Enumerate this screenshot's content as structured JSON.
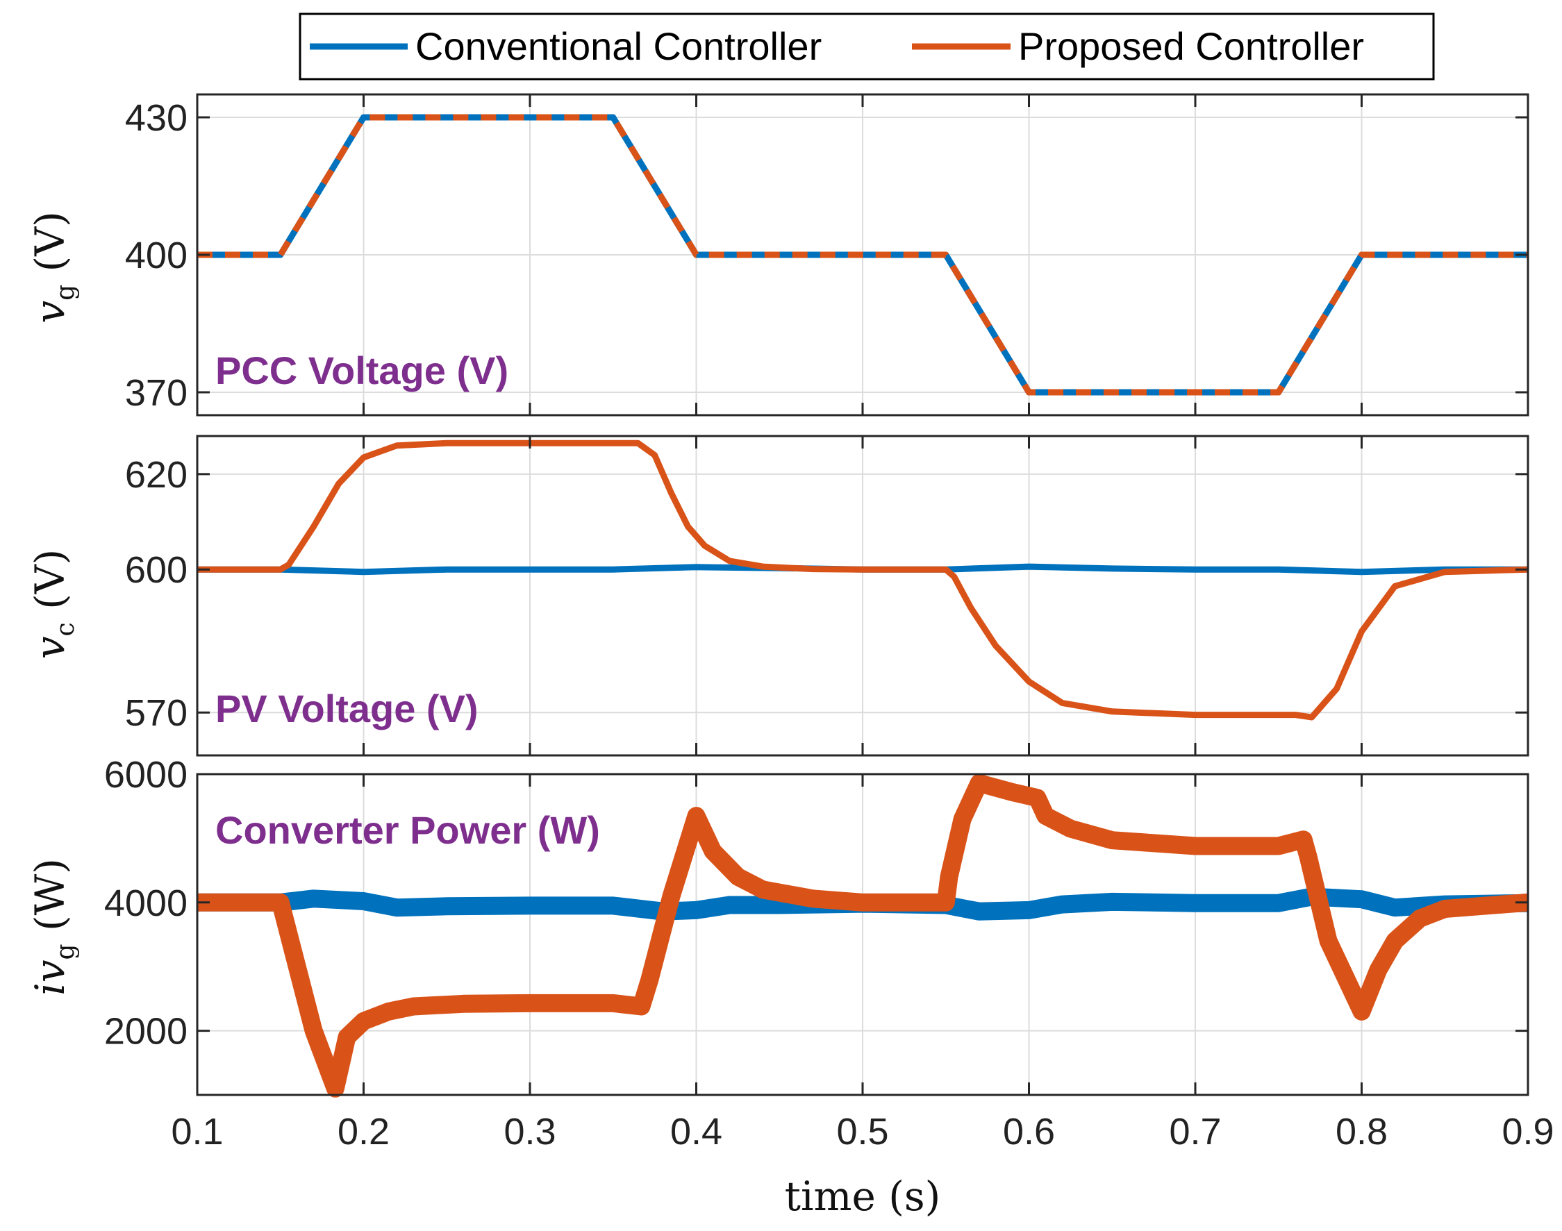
{
  "colors": {
    "conventional": "#0072BD",
    "proposed": "#D95319",
    "annotation": "#7E2F8E",
    "grid": "#dcdcdc",
    "axis": "#262626"
  },
  "legend": {
    "entries": [
      "Conventional Controller",
      "Proposed Controller"
    ]
  },
  "chart_data": [
    {
      "type": "line",
      "annotation": "PCC Voltage (V)",
      "ylabel": {
        "symbol": "v",
        "sub": "g",
        "unit": "(V)"
      },
      "xlim": [
        0.1,
        0.9
      ],
      "ylim": [
        365,
        435
      ],
      "yticks": [
        370,
        400,
        430
      ],
      "grid": true,
      "series": [
        {
          "name": "Conventional Controller",
          "x": [
            0.1,
            0.15,
            0.2,
            0.35,
            0.4,
            0.55,
            0.6,
            0.75,
            0.8,
            0.9
          ],
          "y": [
            400,
            400,
            430,
            430,
            400,
            400,
            370,
            370,
            400,
            400
          ]
        },
        {
          "name": "Proposed Controller",
          "dashed": true,
          "x": [
            0.1,
            0.15,
            0.2,
            0.35,
            0.4,
            0.55,
            0.6,
            0.75,
            0.8,
            0.9
          ],
          "y": [
            400,
            400,
            430,
            430,
            400,
            400,
            370,
            370,
            400,
            400
          ]
        }
      ]
    },
    {
      "type": "line",
      "annotation": "PV Voltage (V)",
      "ylabel": {
        "symbol": "v",
        "sub": "c",
        "unit": "(V)"
      },
      "xlim": [
        0.1,
        0.9
      ],
      "ylim": [
        561,
        628
      ],
      "yticks": [
        570,
        600,
        620
      ],
      "grid": true,
      "series": [
        {
          "name": "Conventional Controller",
          "x": [
            0.1,
            0.15,
            0.2,
            0.25,
            0.3,
            0.35,
            0.4,
            0.45,
            0.5,
            0.55,
            0.6,
            0.65,
            0.7,
            0.75,
            0.8,
            0.85,
            0.9
          ],
          "y": [
            600,
            600,
            599.5,
            600,
            600,
            600,
            600.5,
            600.3,
            600,
            600,
            600.6,
            600.2,
            600,
            600,
            599.5,
            600,
            600
          ]
        },
        {
          "name": "Proposed Controller",
          "x": [
            0.1,
            0.15,
            0.155,
            0.17,
            0.185,
            0.2,
            0.22,
            0.25,
            0.3,
            0.35,
            0.365,
            0.375,
            0.385,
            0.395,
            0.405,
            0.42,
            0.44,
            0.47,
            0.5,
            0.55,
            0.555,
            0.565,
            0.58,
            0.6,
            0.62,
            0.65,
            0.7,
            0.76,
            0.77,
            0.785,
            0.8,
            0.82,
            0.85,
            0.9
          ],
          "y": [
            600,
            600,
            601,
            609,
            618,
            623.5,
            626,
            626.5,
            626.5,
            626.5,
            626.5,
            624,
            616,
            609,
            605,
            601.8,
            600.6,
            600.1,
            600,
            600,
            598.5,
            592,
            584,
            576.5,
            572,
            570.2,
            569.5,
            569.5,
            569,
            575,
            587,
            596.5,
            599.5,
            600
          ]
        }
      ]
    },
    {
      "type": "line",
      "annotation": "Converter Power (W)",
      "ylabel": {
        "symbol": "iv",
        "sub": "g",
        "unit": "(W)"
      },
      "xlim": [
        0.1,
        0.9
      ],
      "ylim": [
        1000,
        6000
      ],
      "yticks": [
        2000,
        4000,
        6000
      ],
      "grid": true,
      "series": [
        {
          "name": "Conventional Controller",
          "band": true,
          "x": [
            0.1,
            0.15,
            0.17,
            0.2,
            0.22,
            0.25,
            0.3,
            0.35,
            0.38,
            0.4,
            0.42,
            0.45,
            0.5,
            0.55,
            0.57,
            0.6,
            0.62,
            0.65,
            0.7,
            0.75,
            0.77,
            0.8,
            0.82,
            0.85,
            0.9
          ],
          "y": [
            4000,
            4000,
            4060,
            4020,
            3920,
            3940,
            3950,
            3950,
            3860,
            3880,
            3960,
            3960,
            3980,
            3960,
            3860,
            3880,
            3970,
            4010,
            3990,
            3990,
            4090,
            4050,
            3920,
            3970,
            3990
          ]
        },
        {
          "name": "Proposed Controller",
          "band": true,
          "x": [
            0.1,
            0.15,
            0.16,
            0.17,
            0.183,
            0.19,
            0.2,
            0.215,
            0.23,
            0.26,
            0.3,
            0.35,
            0.367,
            0.372,
            0.385,
            0.4,
            0.41,
            0.425,
            0.44,
            0.47,
            0.5,
            0.55,
            0.552,
            0.56,
            0.57,
            0.59,
            0.605,
            0.61,
            0.625,
            0.65,
            0.7,
            0.75,
            0.765,
            0.768,
            0.78,
            0.8,
            0.81,
            0.82,
            0.835,
            0.85,
            0.9
          ],
          "y": [
            4000,
            4000,
            3000,
            2000,
            1100,
            1900,
            2150,
            2300,
            2380,
            2420,
            2430,
            2430,
            2380,
            2800,
            4100,
            5350,
            4800,
            4400,
            4200,
            4060,
            4000,
            4000,
            4400,
            5300,
            5860,
            5720,
            5630,
            5350,
            5150,
            4970,
            4880,
            4880,
            4980,
            4700,
            3400,
            2300,
            2950,
            3400,
            3750,
            3900,
            4000
          ]
        }
      ]
    }
  ],
  "xaxis": {
    "ticks": [
      "0.1",
      "0.2",
      "0.3",
      "0.4",
      "0.5",
      "0.6",
      "0.7",
      "0.8",
      "0.9"
    ],
    "tick_values": [
      0.1,
      0.2,
      0.3,
      0.4,
      0.5,
      0.6,
      0.7,
      0.8,
      0.9
    ],
    "label": "time (s)"
  }
}
